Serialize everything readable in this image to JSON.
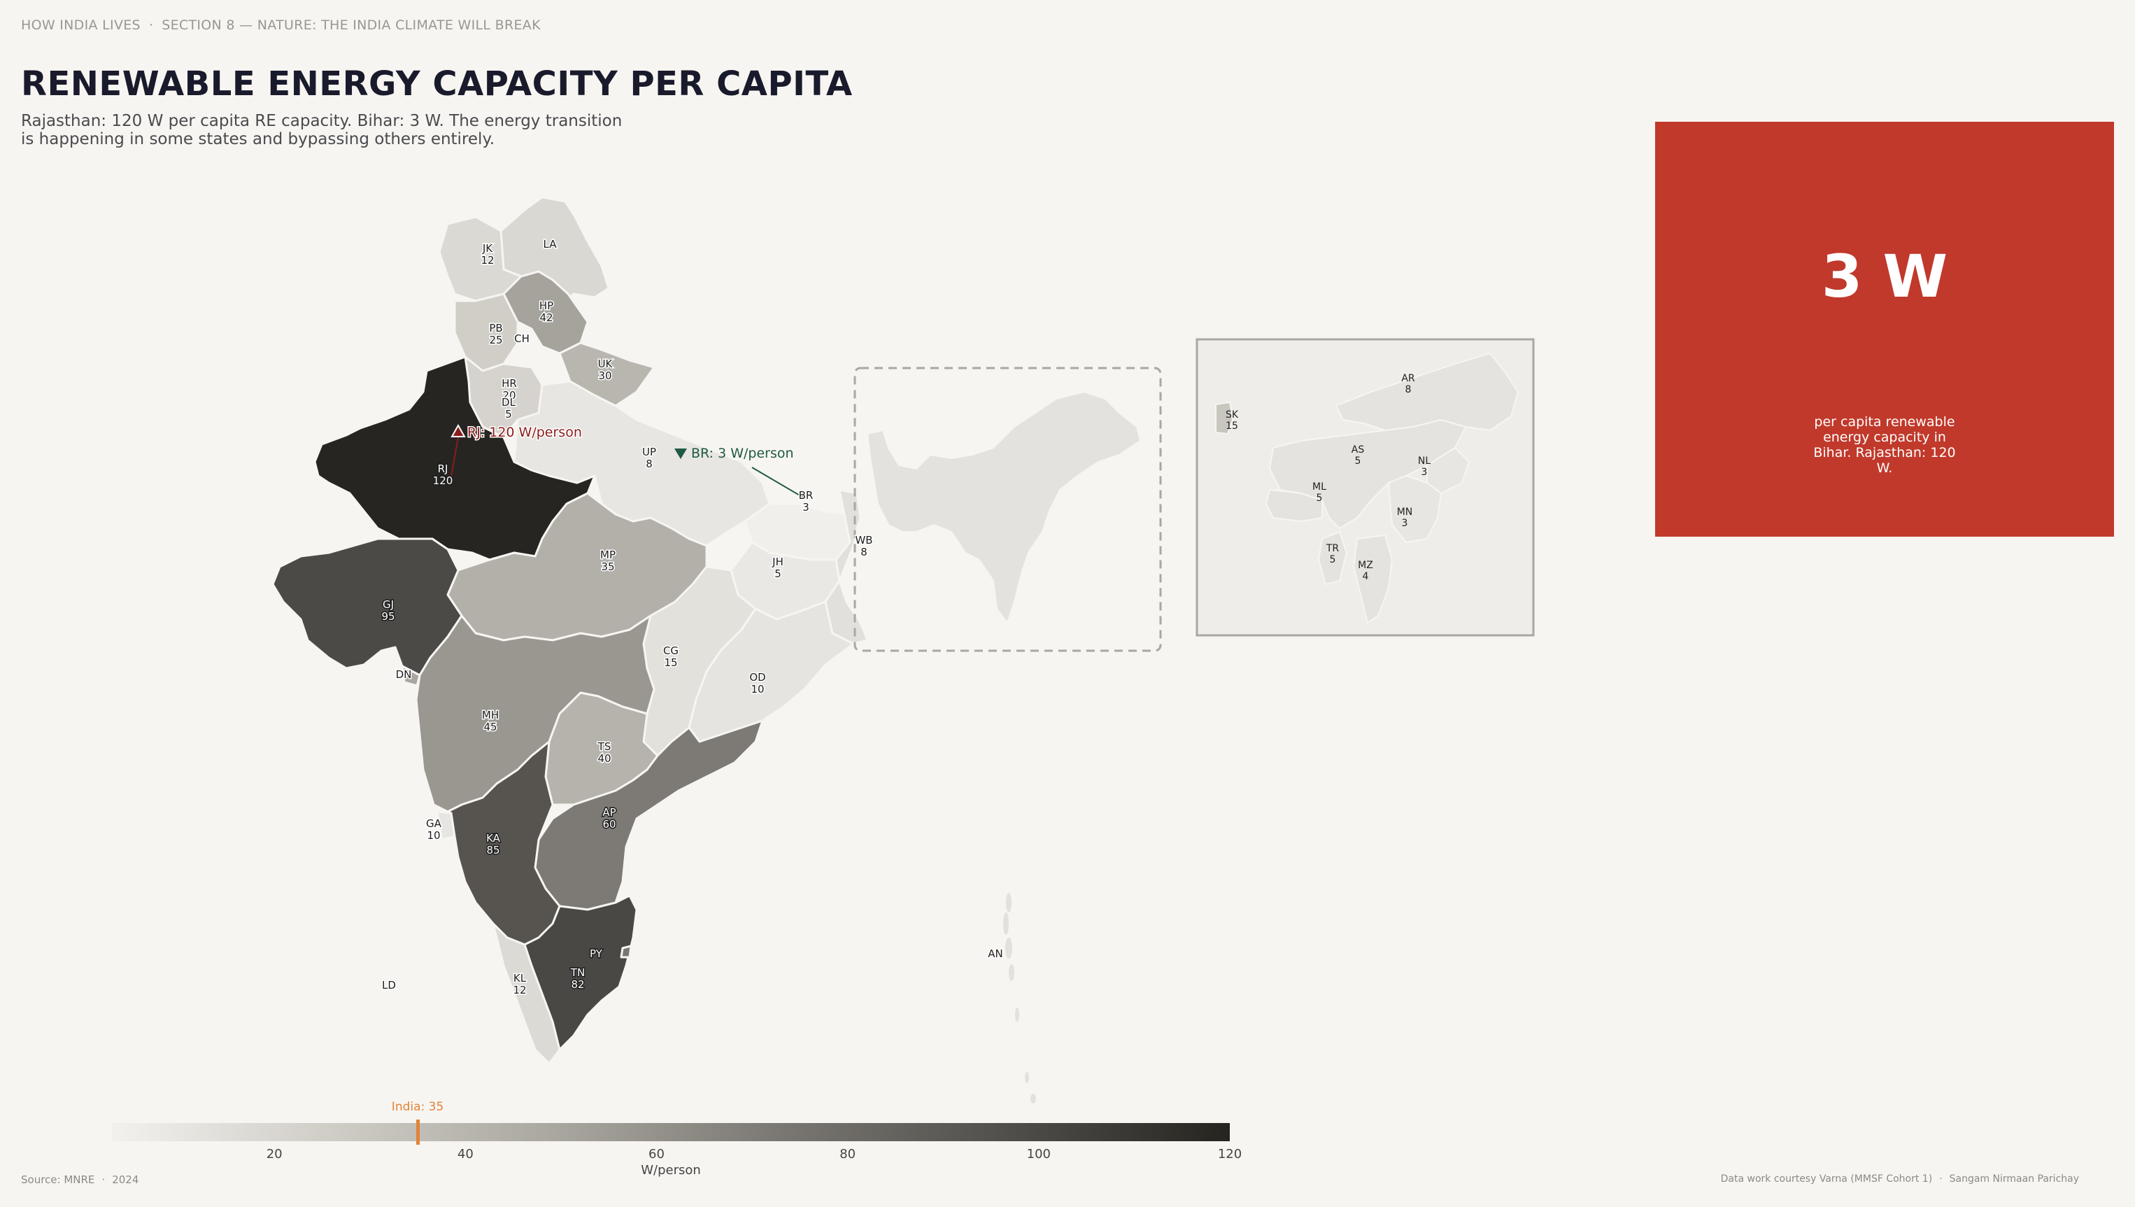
{
  "breadcrumb": {
    "series": "HOW INDIA LIVES",
    "section": "SECTION 8 — NATURE: THE INDIA CLIMATE WILL BREAK"
  },
  "title": "RENEWABLE ENERGY CAPACITY PER CAPITA",
  "subtitle": "Rajasthan: 120 W per capita RE capacity. Bihar: 3 W. The energy transition is happening in some states and bypassing others entirely.",
  "annotations": {
    "high": {
      "text": "RJ: 120 W/person",
      "color": "#8b1c1c"
    },
    "low": {
      "text": "BR: 3 W/person",
      "color": "#1e5a45"
    }
  },
  "states": [
    {
      "code": "JK",
      "value": "12"
    },
    {
      "code": "LA",
      "value": ""
    },
    {
      "code": "HP",
      "value": "42"
    },
    {
      "code": "PB",
      "value": "25"
    },
    {
      "code": "CH",
      "value": ""
    },
    {
      "code": "UK",
      "value": "30"
    },
    {
      "code": "HR",
      "value": "20"
    },
    {
      "code": "DL",
      "value": "5"
    },
    {
      "code": "RJ",
      "value": "120"
    },
    {
      "code": "UP",
      "value": "8"
    },
    {
      "code": "BR",
      "value": "3"
    },
    {
      "code": "MP",
      "value": "35"
    },
    {
      "code": "GJ",
      "value": "95"
    },
    {
      "code": "DN",
      "value": ""
    },
    {
      "code": "JH",
      "value": "5"
    },
    {
      "code": "WB",
      "value": "8"
    },
    {
      "code": "CG",
      "value": "15"
    },
    {
      "code": "OD",
      "value": "10"
    },
    {
      "code": "MH",
      "value": "45"
    },
    {
      "code": "TS",
      "value": "40"
    },
    {
      "code": "AP",
      "value": "60"
    },
    {
      "code": "GA",
      "value": "10"
    },
    {
      "code": "KA",
      "value": "85"
    },
    {
      "code": "KL",
      "value": "12"
    },
    {
      "code": "TN",
      "value": "82"
    },
    {
      "code": "PY",
      "value": ""
    },
    {
      "code": "LD",
      "value": ""
    },
    {
      "code": "AN",
      "value": ""
    }
  ],
  "inset": [
    {
      "code": "SK",
      "value": "15"
    },
    {
      "code": "AR",
      "value": "8"
    },
    {
      "code": "AS",
      "value": "5"
    },
    {
      "code": "NL",
      "value": "3"
    },
    {
      "code": "ML",
      "value": "5"
    },
    {
      "code": "MN",
      "value": "3"
    },
    {
      "code": "TR",
      "value": "5"
    },
    {
      "code": "MZ",
      "value": "4"
    }
  ],
  "stat_card": {
    "value": "3 W",
    "caption": "per capita renewable energy capacity in Bihar. Rajasthan: 120 W.",
    "color": "#c0392b"
  },
  "legend": {
    "ticks": [
      "20",
      "40",
      "60",
      "80",
      "100",
      "120"
    ],
    "unit": "W/person",
    "national_label": "India: 35",
    "national_value": 35,
    "domain": [
      3,
      120
    ],
    "marker_color": "#e1843a"
  },
  "footer": {
    "source": "Source: MNRE",
    "year": "2024",
    "credit": "Data work courtesy Varna (MMSF Cohort 1)",
    "author": "Sangam Nirmaan Parichay"
  }
}
